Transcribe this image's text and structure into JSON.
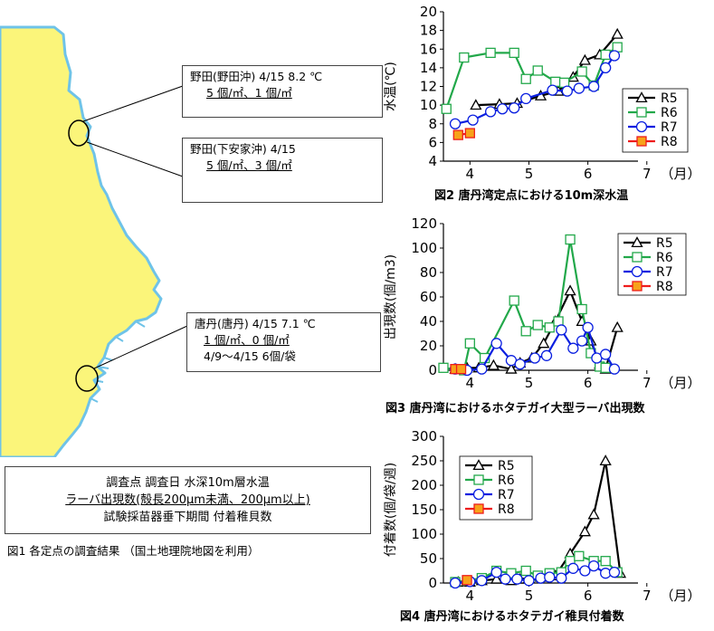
{
  "map": {
    "sites": [
      {
        "title": "野田(野田沖) 4/15  8.2 ℃",
        "line2": "5 個/㎡、1 個/㎡"
      },
      {
        "title": "野田(下安家沖) 4/15",
        "line2": "5 個/㎡、3 個/㎡"
      },
      {
        "title": "唐丹(唐丹) 4/15  7.1 ℃",
        "line2": "1 個/㎡、0 個/㎡",
        "line3": "4/9～4/15  6個/袋"
      }
    ],
    "legend": {
      "line1": "調査点  調査日  水深10m層水温",
      "line2": "ラーバ出現数(殻長200μm未満、200μm以上)",
      "line3": "試験採苗器垂下期間  付着稚貝数"
    },
    "caption": "図1  各定点の調査結果 （国土地理院地図を利用）",
    "colors": {
      "sea": "#ffffff",
      "land": "#fbf57a",
      "coast": "#6fc3e8"
    }
  },
  "chart_data": [
    {
      "type": "line",
      "title": "図2  唐丹湾定点における10m深水温",
      "ylabel": "水温(℃)",
      "xlabel": "（月）",
      "xlim": [
        3.55,
        6.85
      ],
      "ylim": [
        4,
        20
      ],
      "yticks": [
        4,
        6,
        8,
        10,
        12,
        14,
        16,
        18,
        20
      ],
      "xticks": [
        4,
        5,
        6,
        7
      ],
      "legend_position": "right",
      "series": [
        {
          "name": "R5",
          "color": "#000000",
          "marker": "triangle",
          "x": [
            4.1,
            4.5,
            4.8,
            5.2,
            5.5,
            5.75,
            5.95,
            6.2,
            6.5
          ],
          "y": [
            10.0,
            10.1,
            10.2,
            11.0,
            11.5,
            13.0,
            14.8,
            15.4,
            17.6
          ]
        },
        {
          "name": "R6",
          "color": "#22a84a",
          "marker": "square",
          "x": [
            3.6,
            3.9,
            4.35,
            4.75,
            4.95,
            5.15,
            5.45,
            5.6,
            5.9,
            6.1,
            6.3,
            6.5
          ],
          "y": [
            9.6,
            15.1,
            15.6,
            15.6,
            12.8,
            13.7,
            12.5,
            12.4,
            13.6,
            12.1,
            15.4,
            16.2
          ]
        },
        {
          "name": "R7",
          "color": "#0a1fe0",
          "marker": "circle",
          "x": [
            3.75,
            4.05,
            4.35,
            4.55,
            4.75,
            4.95,
            5.4,
            5.65,
            5.85,
            6.1,
            6.3,
            6.45
          ],
          "y": [
            8.0,
            8.4,
            9.3,
            9.6,
            9.7,
            10.7,
            11.6,
            11.5,
            11.8,
            12.0,
            14.0,
            15.3
          ]
        },
        {
          "name": "R8",
          "color": "#ee1c1c",
          "fill": "#f7a21a",
          "marker": "square",
          "x": [
            3.8,
            4.0
          ],
          "y": [
            6.8,
            7.0
          ]
        }
      ]
    },
    {
      "type": "line",
      "title": "図3  唐丹湾におけるホタテガイ大型ラーバ出現数",
      "ylabel": "出現数(個/m3)",
      "xlabel": "（月）",
      "xlim": [
        3.55,
        6.85
      ],
      "ylim": [
        0,
        120
      ],
      "yticks": [
        0,
        20,
        40,
        60,
        80,
        100,
        120
      ],
      "xticks": [
        4,
        5,
        6,
        7
      ],
      "legend_position": "right",
      "series": [
        {
          "name": "R5",
          "color": "#000000",
          "marker": "triangle",
          "x": [
            3.75,
            3.95,
            4.15,
            4.4,
            4.7,
            4.85,
            5.05,
            5.25,
            5.45,
            5.7,
            5.9,
            6.05,
            6.2,
            6.3,
            6.5
          ],
          "y": [
            1,
            2,
            2,
            4,
            1,
            6,
            10,
            22,
            40,
            65,
            40,
            24,
            5,
            1,
            35
          ]
        },
        {
          "name": "R6",
          "color": "#22a84a",
          "marker": "square",
          "x": [
            3.55,
            3.9,
            4.0,
            4.25,
            4.75,
            4.95,
            5.15,
            5.35,
            5.5,
            5.7,
            5.9,
            6.05,
            6.2,
            6.3
          ],
          "y": [
            2,
            0,
            22,
            10,
            57,
            32,
            37,
            35,
            40,
            107,
            50,
            14,
            3,
            2
          ]
        },
        {
          "name": "R7",
          "color": "#0a1fe0",
          "marker": "circle",
          "x": [
            3.75,
            3.95,
            4.2,
            4.45,
            4.7,
            4.85,
            5.1,
            5.3,
            5.55,
            5.75,
            5.9,
            6.0,
            6.15,
            6.3,
            6.45
          ],
          "y": [
            1,
            0,
            1,
            22,
            8,
            5,
            10,
            12,
            33,
            18,
            24,
            35,
            10,
            13,
            1
          ]
        },
        {
          "name": "R8",
          "color": "#ee1c1c",
          "fill": "#f7a21a",
          "marker": "square",
          "x": [
            3.75,
            3.85
          ],
          "y": [
            1,
            1
          ]
        }
      ]
    },
    {
      "type": "line",
      "title": "図4  唐丹湾におけるホタテガイ稚貝付着数",
      "ylabel": "付着数(個/袋/週)",
      "xlabel": "（月）",
      "xlim": [
        3.55,
        6.85
      ],
      "ylim": [
        0,
        300
      ],
      "yticks": [
        0,
        50,
        100,
        150,
        200,
        250,
        300
      ],
      "xticks": [
        4,
        5,
        6,
        7
      ],
      "legend_position": "top-left",
      "series": [
        {
          "name": "R5",
          "color": "#000000",
          "marker": "triangle",
          "x": [
            3.8,
            4.0,
            4.2,
            4.45,
            4.7,
            4.85,
            5.0,
            5.2,
            5.45,
            5.7,
            5.95,
            6.1,
            6.3,
            6.55
          ],
          "y": [
            2,
            2,
            5,
            8,
            5,
            8,
            10,
            12,
            15,
            60,
            105,
            140,
            250,
            20
          ]
        },
        {
          "name": "R6",
          "color": "#22a84a",
          "marker": "square",
          "x": [
            3.75,
            3.95,
            4.2,
            4.45,
            4.7,
            4.95,
            5.15,
            5.35,
            5.55,
            5.7,
            5.85,
            6.1,
            6.3,
            6.5
          ],
          "y": [
            2,
            5,
            10,
            25,
            20,
            25,
            15,
            20,
            22,
            45,
            55,
            45,
            45,
            22
          ]
        },
        {
          "name": "R7",
          "color": "#0a1fe0",
          "marker": "circle",
          "x": [
            3.75,
            4.0,
            4.2,
            4.45,
            4.6,
            4.8,
            5.0,
            5.2,
            5.35,
            5.55,
            5.75,
            5.95,
            6.1,
            6.3,
            6.45
          ],
          "y": [
            0,
            3,
            5,
            22,
            8,
            8,
            5,
            10,
            12,
            10,
            30,
            25,
            35,
            20,
            22
          ]
        },
        {
          "name": "R8",
          "color": "#ee1c1c",
          "fill": "#f7a21a",
          "marker": "square",
          "x": [
            3.95
          ],
          "y": [
            6
          ]
        }
      ]
    }
  ]
}
